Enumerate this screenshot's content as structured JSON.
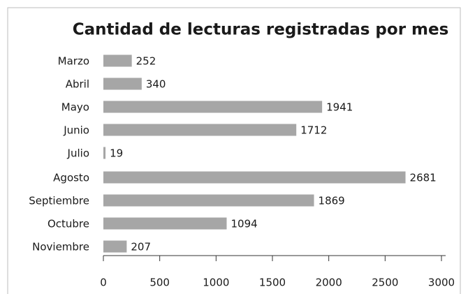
{
  "chart_data": {
    "type": "bar",
    "orientation": "horizontal",
    "title": "Cantidad de lecturas registradas por mes",
    "categories": [
      "Marzo",
      "Abril",
      "Mayo",
      "Junio",
      "Julio",
      "Agosto",
      "Septiembre",
      "Octubre",
      "Noviembre"
    ],
    "values": [
      252,
      340,
      1941,
      1712,
      19,
      2681,
      1869,
      1094,
      207
    ],
    "color": "#a6a6a6",
    "xlim": [
      0,
      3000
    ],
    "xticks": [
      0,
      500,
      1000,
      1500,
      2000,
      2500,
      3000
    ]
  }
}
